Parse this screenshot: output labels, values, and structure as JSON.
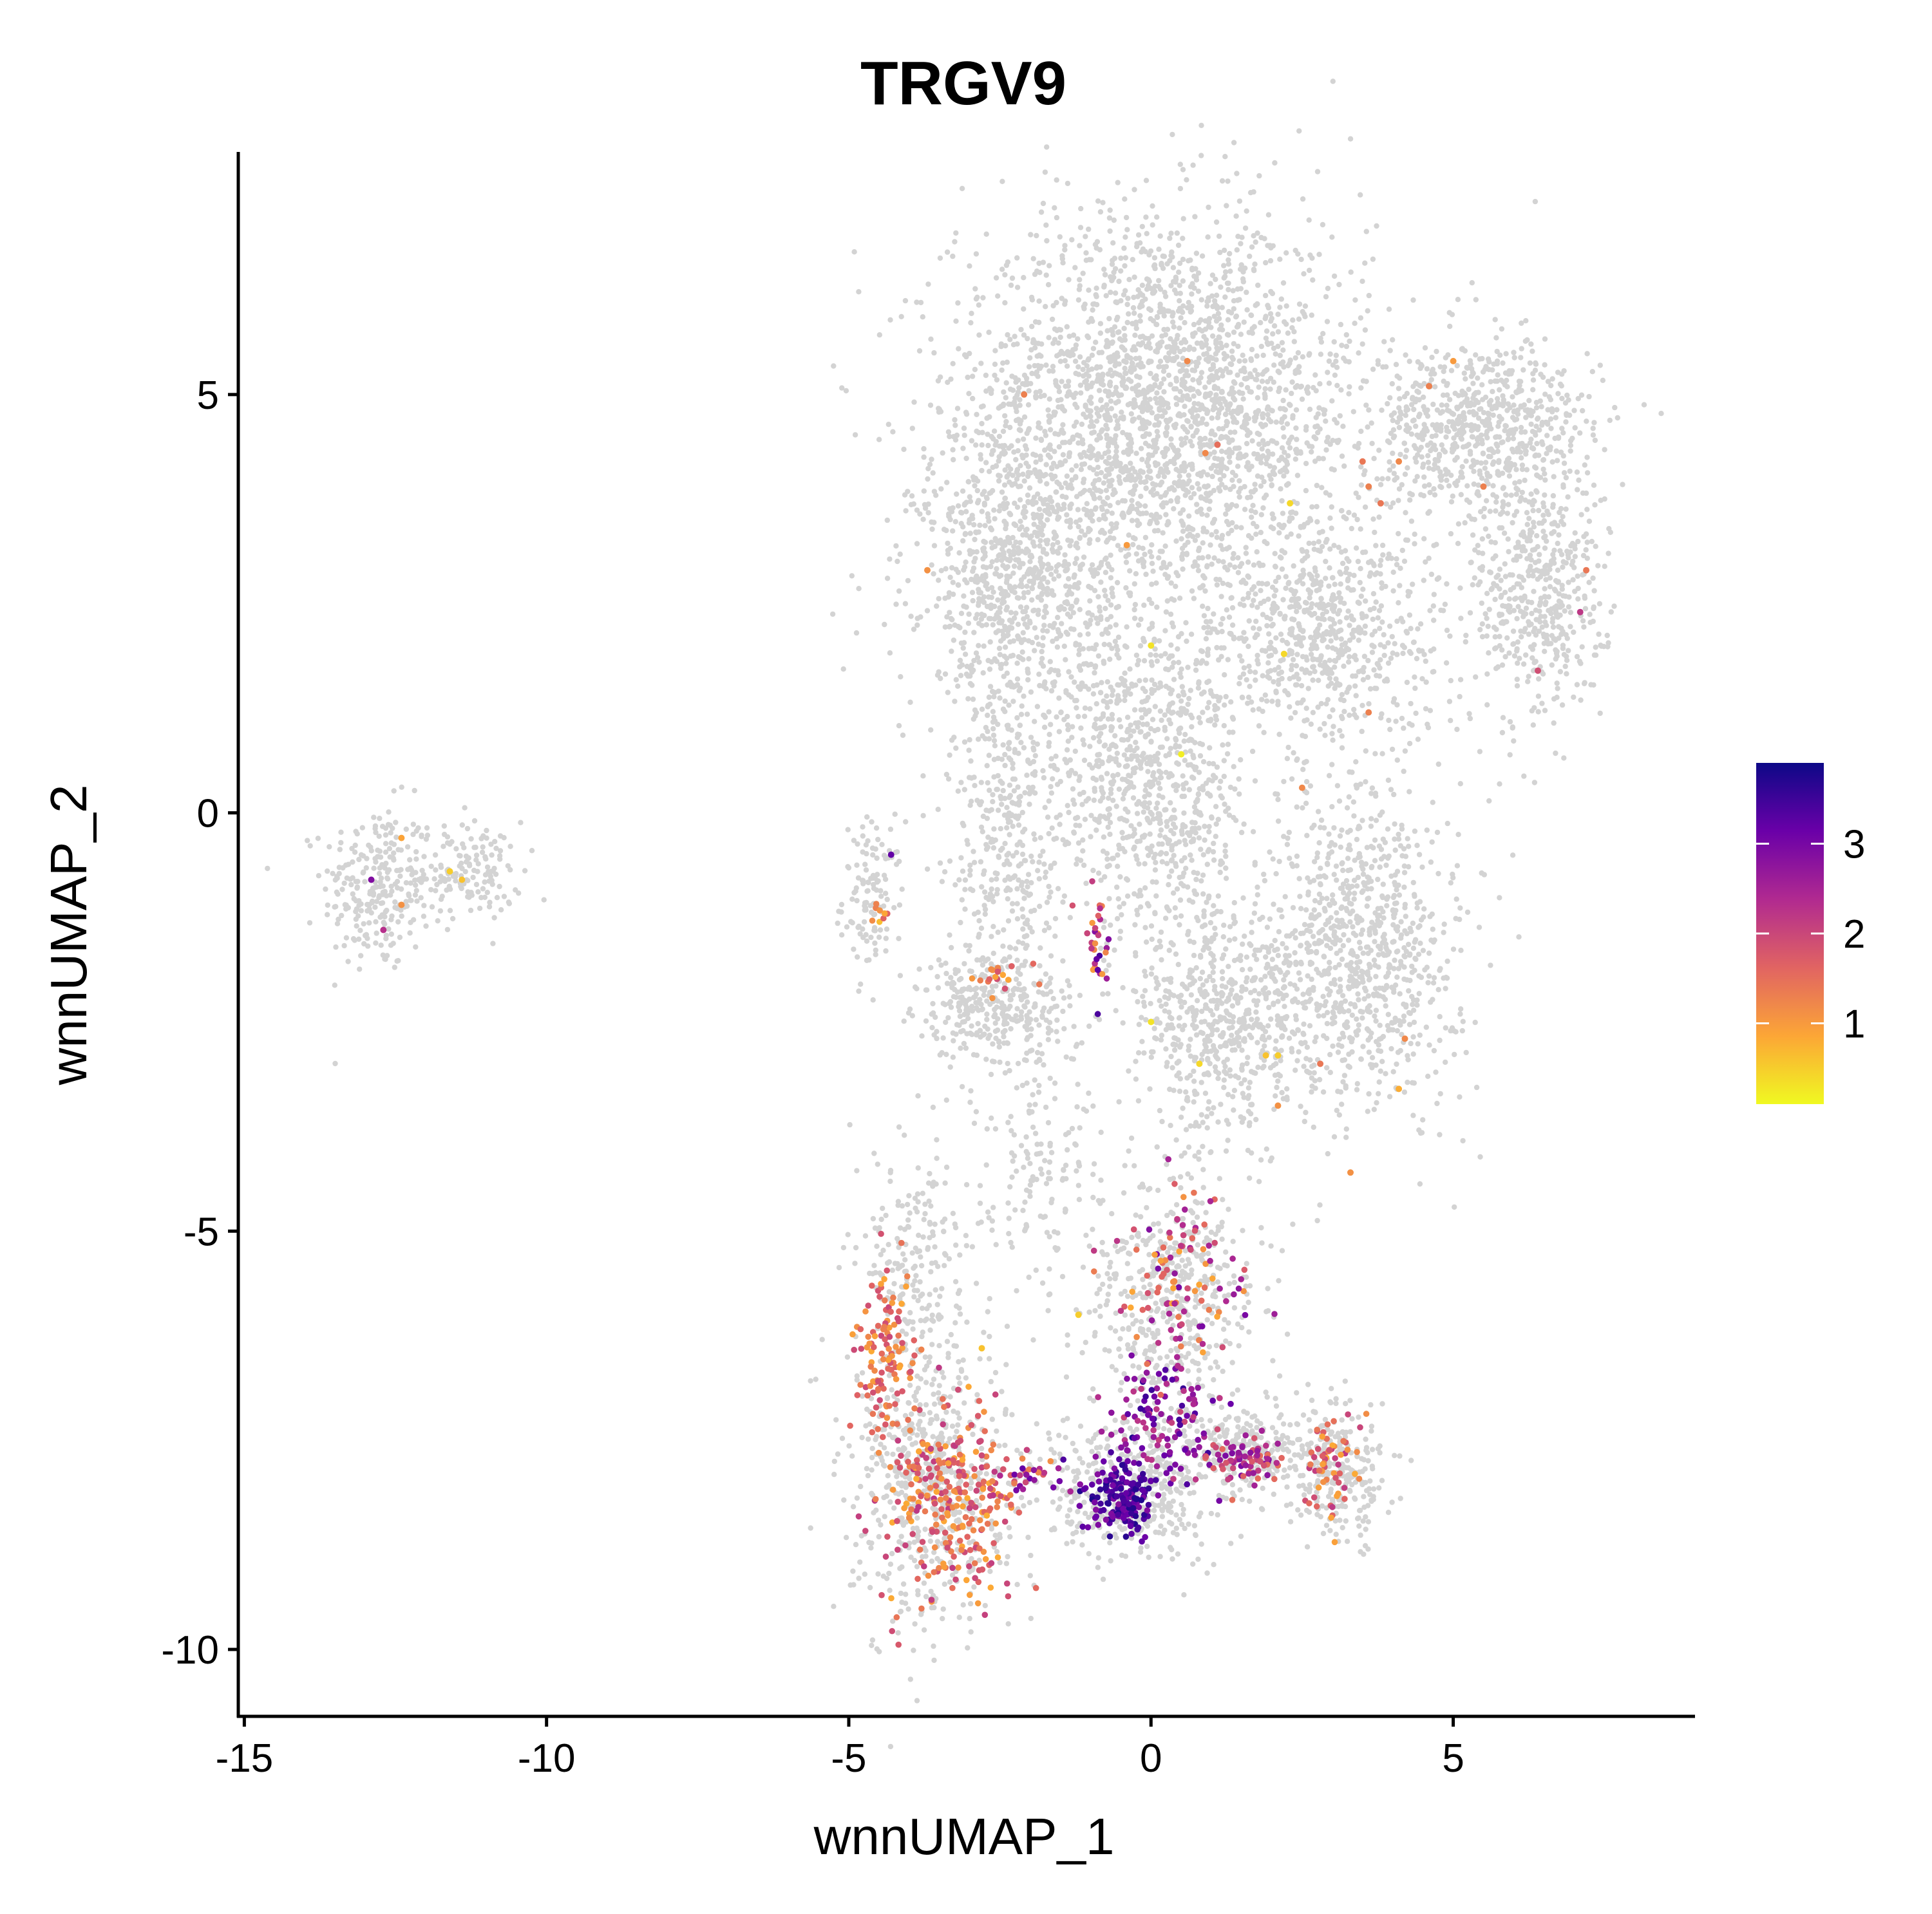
{
  "chart_data": {
    "type": "scatter",
    "title": "TRGV9",
    "xlabel": "wnnUMAP_1",
    "ylabel": "wnnUMAP_2",
    "xlim": [
      -15.1,
      9.0
    ],
    "ylim": [
      -10.8,
      7.9
    ],
    "x_ticks": [
      -15,
      -10,
      -5,
      0,
      5
    ],
    "x_tick_labels": [
      "-15",
      "-10",
      "-5",
      "0",
      "5"
    ],
    "y_ticks": [
      -10,
      -5,
      0,
      5
    ],
    "y_tick_labels": [
      "-10",
      "-5",
      "0",
      "5"
    ],
    "legend": {
      "position": "right",
      "type": "colorbar",
      "range": [
        0.1,
        3.9
      ],
      "ticks": [
        1,
        2,
        3
      ],
      "tick_labels": [
        "1",
        "2",
        "3"
      ],
      "colors": [
        "#F0F921",
        "#FCA636",
        "#E16462",
        "#B12A90",
        "#6A00A8",
        "#0D0887"
      ]
    },
    "background_color": "#D3D3D3",
    "background_clusters": [
      {
        "cx": -12.8,
        "cy": -0.9,
        "rx": 0.9,
        "ry": 1.0,
        "n": 260
      },
      {
        "cx": -11.3,
        "cy": -0.7,
        "rx": 0.9,
        "ry": 0.6,
        "n": 150
      },
      {
        "cx": -4.6,
        "cy": -1.0,
        "rx": 0.5,
        "ry": 0.9,
        "n": 120
      },
      {
        "cx": 0.2,
        "cy": 4.8,
        "rx": 3.4,
        "ry": 2.3,
        "n": 2600
      },
      {
        "cx": -2.2,
        "cy": 2.9,
        "rx": 1.6,
        "ry": 1.6,
        "n": 700
      },
      {
        "cx": 5.5,
        "cy": 4.6,
        "rx": 1.8,
        "ry": 1.0,
        "n": 700
      },
      {
        "cx": 6.4,
        "cy": 2.6,
        "rx": 1.1,
        "ry": 1.6,
        "n": 500
      },
      {
        "cx": 2.8,
        "cy": 2.2,
        "rx": 2.0,
        "ry": 1.3,
        "n": 700
      },
      {
        "cx": 0.0,
        "cy": 0.4,
        "rx": 1.6,
        "ry": 2.0,
        "n": 900
      },
      {
        "cx": 3.5,
        "cy": -1.6,
        "rx": 1.6,
        "ry": 2.0,
        "n": 900
      },
      {
        "cx": 1.2,
        "cy": -2.5,
        "rx": 1.5,
        "ry": 1.3,
        "n": 600
      },
      {
        "cx": -2.4,
        "cy": -0.3,
        "rx": 1.0,
        "ry": 3.2,
        "n": 550
      },
      {
        "cx": -2.6,
        "cy": -2.3,
        "rx": 1.3,
        "ry": 0.6,
        "n": 260
      },
      {
        "cx": -1.8,
        "cy": -4.2,
        "rx": 1.0,
        "ry": 1.5,
        "n": 140
      },
      {
        "cx": -3.9,
        "cy": -5.5,
        "rx": 0.9,
        "ry": 1.5,
        "n": 220
      },
      {
        "cx": -3.6,
        "cy": -8.0,
        "rx": 1.3,
        "ry": 1.7,
        "n": 600
      },
      {
        "cx": 0.4,
        "cy": -5.8,
        "rx": 1.4,
        "ry": 1.6,
        "n": 520
      },
      {
        "cx": -0.4,
        "cy": -8.1,
        "rx": 1.6,
        "ry": 0.8,
        "n": 450
      },
      {
        "cx": 3.1,
        "cy": -7.9,
        "rx": 0.8,
        "ry": 0.8,
        "n": 260
      },
      {
        "cx": 1.6,
        "cy": -7.6,
        "rx": 1.0,
        "ry": 0.5,
        "n": 200
      }
    ],
    "highlight_clusters": [
      {
        "cx": -3.3,
        "cy": -8.2,
        "rx": 1.1,
        "ry": 1.2,
        "n": 280,
        "vmin": 0.8,
        "vmax": 2.2
      },
      {
        "cx": -4.4,
        "cy": -6.4,
        "rx": 0.5,
        "ry": 1.0,
        "n": 110,
        "vmin": 0.8,
        "vmax": 2.0
      },
      {
        "cx": -0.5,
        "cy": -8.2,
        "rx": 0.55,
        "ry": 0.45,
        "n": 170,
        "vmin": 2.8,
        "vmax": 3.8
      },
      {
        "cx": 0.2,
        "cy": -7.3,
        "rx": 0.9,
        "ry": 0.7,
        "n": 110,
        "vmin": 2.0,
        "vmax": 3.6
      },
      {
        "cx": 0.5,
        "cy": -5.6,
        "rx": 1.0,
        "ry": 1.2,
        "n": 110,
        "vmin": 0.8,
        "vmax": 3.0
      },
      {
        "cx": 1.5,
        "cy": -7.7,
        "rx": 0.8,
        "ry": 0.3,
        "n": 80,
        "vmin": 1.5,
        "vmax": 3.0
      },
      {
        "cx": 3.0,
        "cy": -7.8,
        "rx": 0.5,
        "ry": 0.6,
        "n": 60,
        "vmin": 0.8,
        "vmax": 2.2
      },
      {
        "cx": -2.0,
        "cy": -8.0,
        "rx": 0.6,
        "ry": 0.3,
        "n": 30,
        "vmin": 1.0,
        "vmax": 3.2
      },
      {
        "cx": -0.9,
        "cy": -1.6,
        "rx": 0.25,
        "ry": 0.7,
        "n": 30,
        "vmin": 1.0,
        "vmax": 3.5
      },
      {
        "cx": -2.6,
        "cy": -2.0,
        "rx": 0.6,
        "ry": 0.3,
        "n": 18,
        "vmin": 0.8,
        "vmax": 2.0
      },
      {
        "cx": -4.5,
        "cy": -1.2,
        "rx": 0.15,
        "ry": 0.2,
        "n": 8,
        "vmin": 0.6,
        "vmax": 1.8
      }
    ],
    "highlight_points": [
      {
        "x": 0.6,
        "y": 5.4,
        "v": 1.2
      },
      {
        "x": -2.1,
        "y": 5.0,
        "v": 1.3
      },
      {
        "x": 1.1,
        "y": 4.4,
        "v": 1.5
      },
      {
        "x": 0.9,
        "y": 4.3,
        "v": 1.2
      },
      {
        "x": 2.3,
        "y": 3.7,
        "v": 0.4
      },
      {
        "x": -0.4,
        "y": 3.2,
        "v": 1.0
      },
      {
        "x": -3.7,
        "y": 2.9,
        "v": 1.1
      },
      {
        "x": 0.0,
        "y": 2.0,
        "v": 0.3
      },
      {
        "x": 2.2,
        "y": 1.9,
        "v": 0.4
      },
      {
        "x": 0.5,
        "y": 0.7,
        "v": 0.2
      },
      {
        "x": 2.5,
        "y": 0.3,
        "v": 1.2
      },
      {
        "x": 3.6,
        "y": 1.2,
        "v": 1.3
      },
      {
        "x": 4.1,
        "y": 4.2,
        "v": 1.2
      },
      {
        "x": 3.5,
        "y": 4.2,
        "v": 1.4
      },
      {
        "x": 3.6,
        "y": 3.9,
        "v": 1.3
      },
      {
        "x": 3.8,
        "y": 3.7,
        "v": 1.4
      },
      {
        "x": 4.6,
        "y": 5.1,
        "v": 1.3
      },
      {
        "x": 5.0,
        "y": 5.4,
        "v": 1.0
      },
      {
        "x": 5.5,
        "y": 3.9,
        "v": 1.3
      },
      {
        "x": 7.2,
        "y": 2.9,
        "v": 1.4
      },
      {
        "x": 7.1,
        "y": 2.4,
        "v": 2.2
      },
      {
        "x": 6.4,
        "y": 1.7,
        "v": 1.9
      },
      {
        "x": -12.9,
        "y": -0.8,
        "v": 2.9
      },
      {
        "x": -12.4,
        "y": -0.3,
        "v": 0.9
      },
      {
        "x": -12.4,
        "y": -1.1,
        "v": 1.1
      },
      {
        "x": -12.7,
        "y": -1.4,
        "v": 2.3
      },
      {
        "x": -11.6,
        "y": -0.7,
        "v": 0.5
      },
      {
        "x": -11.4,
        "y": -0.8,
        "v": 0.6
      },
      {
        "x": -4.3,
        "y": -0.5,
        "v": 3.2
      },
      {
        "x": 1.9,
        "y": -2.9,
        "v": 0.6
      },
      {
        "x": 2.1,
        "y": -2.9,
        "v": 0.5
      },
      {
        "x": 2.8,
        "y": -3.0,
        "v": 1.4
      },
      {
        "x": 2.1,
        "y": -3.5,
        "v": 1.1
      },
      {
        "x": 4.2,
        "y": -2.7,
        "v": 1.2
      },
      {
        "x": 4.1,
        "y": -3.3,
        "v": 0.8
      },
      {
        "x": 3.3,
        "y": -4.3,
        "v": 1.1
      },
      {
        "x": 0.8,
        "y": -3.0,
        "v": 0.4
      },
      {
        "x": 0.0,
        "y": -2.5,
        "v": 0.3
      },
      {
        "x": -2.8,
        "y": -6.4,
        "v": 0.6
      },
      {
        "x": -1.2,
        "y": -6.0,
        "v": 0.5
      }
    ]
  }
}
